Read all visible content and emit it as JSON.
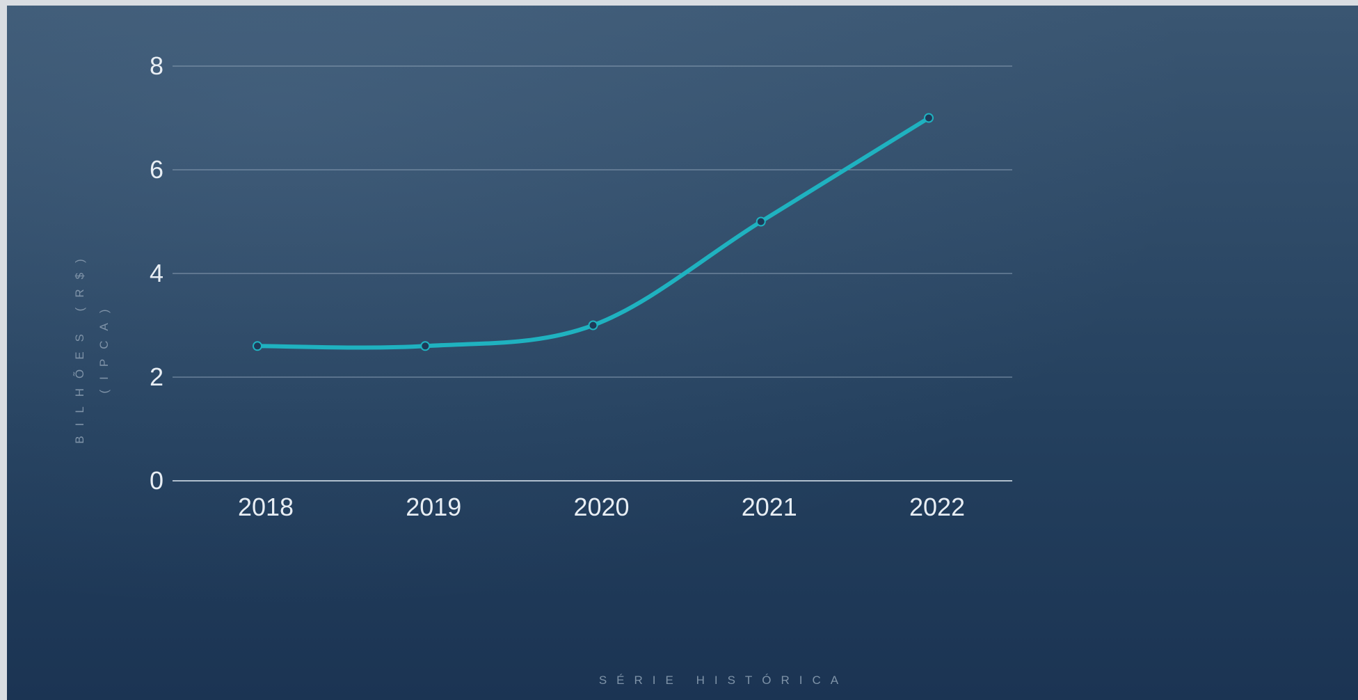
{
  "chart_data": {
    "type": "line",
    "x": [
      "2018",
      "2019",
      "2020",
      "2021",
      "2022"
    ],
    "series": [
      {
        "values": [
          2.6,
          2.6,
          3.0,
          5.0,
          7.0
        ]
      }
    ],
    "xlabel": "SÉRIE HISTÓRICA",
    "ylabel_line1": "BILHÕES (R$)",
    "ylabel_line2": "(IPCA)",
    "ylim": [
      0,
      8
    ],
    "yticks": [
      "0",
      "2",
      "4",
      "6",
      "8"
    ],
    "grid": true,
    "colors": {
      "line": "#1fb2c0",
      "grid": "#8fa3b8",
      "axis": "#b8c6d4",
      "tick_text": "#e8eef4",
      "title_text": "#7f93a8"
    }
  }
}
